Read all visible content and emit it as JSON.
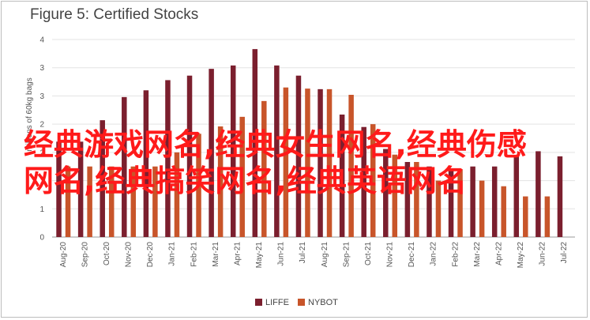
{
  "chart_data": {
    "type": "bar",
    "title": "Figure 5: Certified Stocks",
    "ylabel": "millions of 60kg bags",
    "xlabel": "",
    "ylim": [
      0,
      3.5
    ],
    "yticks": [
      0,
      0.5,
      1,
      1.5,
      2,
      2.5,
      3,
      3.5
    ],
    "ytick_labels": [
      "0",
      "1",
      "1",
      "2",
      "2",
      "3",
      "3",
      "4"
    ],
    "categories": [
      "Aug-20",
      "Sep-20",
      "Oct-20",
      "Nov-20",
      "Dec-20",
      "Jan-21",
      "Feb-21",
      "Mar-21",
      "Apr-21",
      "May-21",
      "Jun-21",
      "Jul-21",
      "Aug-21",
      "Sep-21",
      "Oct-21",
      "Nov-21",
      "Dec-21",
      "Jan-22",
      "Feb-22",
      "Mar-22",
      "Apr-22",
      "May-22",
      "Jun-22",
      "Jul-22"
    ],
    "series": [
      {
        "name": "LIFFE",
        "color": "#7b1f2e",
        "values": [
          1.69,
          1.69,
          2.07,
          2.48,
          2.6,
          2.78,
          2.86,
          2.98,
          3.04,
          3.33,
          3.04,
          2.86,
          2.62,
          2.17,
          1.95,
          1.56,
          1.33,
          1.25,
          1.2,
          1.25,
          1.25,
          1.43,
          1.52,
          1.43
        ]
      },
      {
        "name": "NYBOT",
        "color": "#c8552a",
        "values": [
          1.25,
          1.25,
          1.25,
          1.25,
          1.25,
          1.5,
          1.83,
          1.96,
          2.13,
          2.41,
          2.65,
          2.63,
          2.62,
          2.52,
          2.0,
          1.46,
          1.33,
          1.0,
          1.2,
          1.0,
          0.9,
          0.72,
          0.72,
          null
        ]
      }
    ],
    "legend": {
      "placement": "bottom"
    },
    "grid": true
  },
  "overlay_text": "经典游戏网名,经典女生网名,经典伤感网名,经典搞笑网名,经典英语网名"
}
